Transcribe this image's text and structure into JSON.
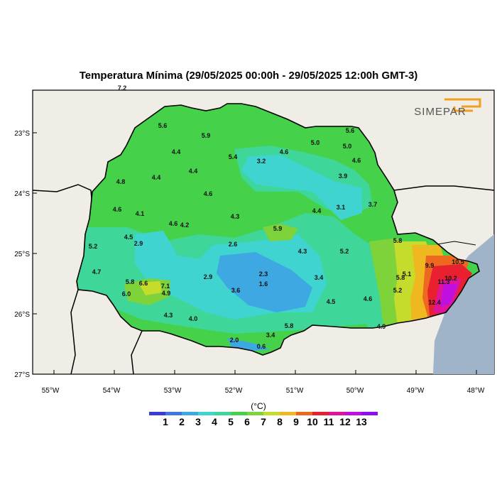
{
  "title": "Temperatura Mínima (29/05/2025 00:00h - 29/05/2025 12:00h GMT-3)",
  "logo_text": "SIMEPAR",
  "lat_labels": [
    "23°S",
    "24°S",
    "25°S",
    "26°S",
    "27°S"
  ],
  "lon_labels": [
    "55°W",
    "54°W",
    "53°W",
    "52°W",
    "51°W",
    "50°W",
    "49°W",
    "48°W"
  ],
  "colorbar": {
    "unit": "(°C)",
    "ticks": [
      "1",
      "2",
      "3",
      "4",
      "5",
      "6",
      "7",
      "8",
      "9",
      "10",
      "11",
      "12",
      "13"
    ],
    "colors": [
      "#3b3bd8",
      "#3c78e0",
      "#3ea8e2",
      "#3fd4d0",
      "#3fd69a",
      "#45d24a",
      "#7ed23a",
      "#c6dc2c",
      "#f0b820",
      "#ee6820",
      "#e82030",
      "#e0149a",
      "#c010e0",
      "#8a10f0"
    ]
  },
  "stations": [
    {
      "v": "7.2"
    },
    {
      "v": "5.6"
    },
    {
      "v": "5.9"
    },
    {
      "v": "5.6"
    },
    {
      "v": "5.0"
    },
    {
      "v": "5.0"
    },
    {
      "v": "4.4"
    },
    {
      "v": "5.4"
    },
    {
      "v": "3.2"
    },
    {
      "v": "4.6"
    },
    {
      "v": "4.6"
    },
    {
      "v": "4.4"
    },
    {
      "v": "4.4"
    },
    {
      "v": "3.9"
    },
    {
      "v": "4.8"
    },
    {
      "v": "4.6"
    },
    {
      "v": "4.6"
    },
    {
      "v": "4.1"
    },
    {
      "v": "4.6"
    },
    {
      "v": "4.2"
    },
    {
      "v": "4.3"
    },
    {
      "v": "4.4"
    },
    {
      "v": "3.1"
    },
    {
      "v": "3.7"
    },
    {
      "v": "5.9"
    },
    {
      "v": "4.5"
    },
    {
      "v": "2.9"
    },
    {
      "v": "5.2"
    },
    {
      "v": "2.6"
    },
    {
      "v": "4.3"
    },
    {
      "v": "5.2"
    },
    {
      "v": "5.8"
    },
    {
      "v": "4.7"
    },
    {
      "v": "2.3"
    },
    {
      "v": "5.1"
    },
    {
      "v": "9.9"
    },
    {
      "v": "10.5"
    },
    {
      "v": "5.8"
    },
    {
      "v": "6.6"
    },
    {
      "v": "2.9"
    },
    {
      "v": "1.6"
    },
    {
      "v": "3.4"
    },
    {
      "v": "5.8"
    },
    {
      "v": "10.2"
    },
    {
      "v": "11.3"
    },
    {
      "v": "7.1"
    },
    {
      "v": "6.0"
    },
    {
      "v": "4.9"
    },
    {
      "v": "3.6"
    },
    {
      "v": "5.2"
    },
    {
      "v": "4.5"
    },
    {
      "v": "4.6"
    },
    {
      "v": "12.4"
    },
    {
      "v": "4.3"
    },
    {
      "v": "4.0"
    },
    {
      "v": "5.8"
    },
    {
      "v": "3.4"
    },
    {
      "v": "4.9"
    },
    {
      "v": "2.0"
    },
    {
      "v": "0.6"
    }
  ]
}
